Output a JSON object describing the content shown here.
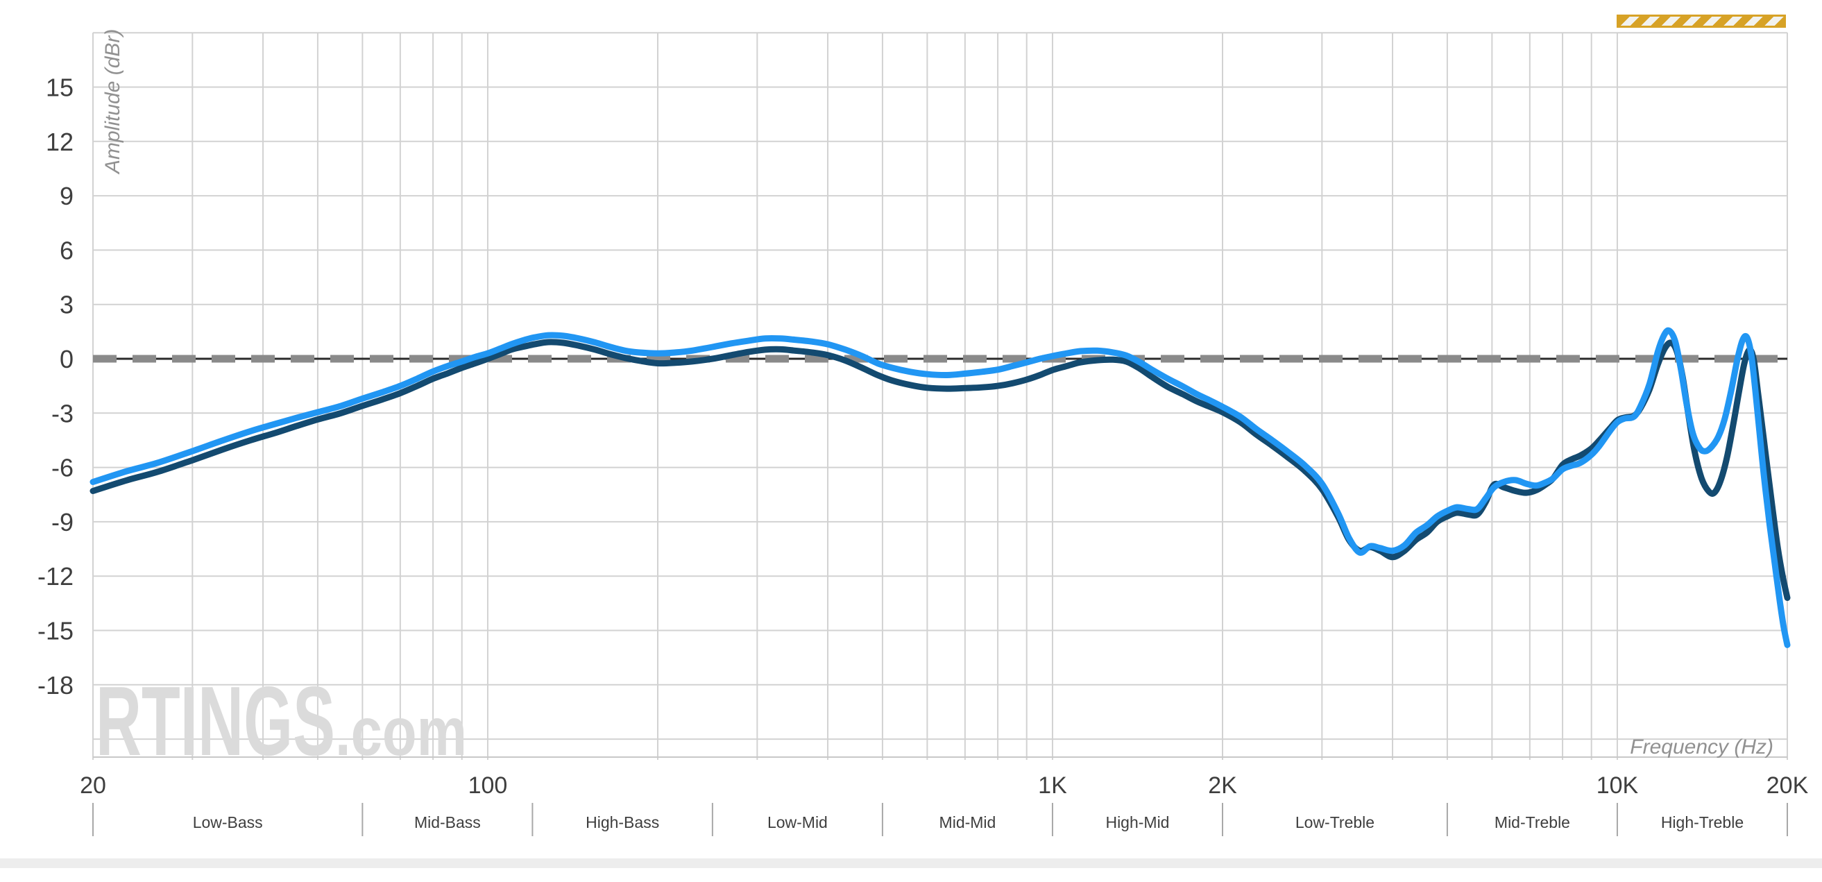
{
  "watermark": {
    "main": "RTINGS",
    "suffix": ".com"
  },
  "banner": {
    "gold_color": "#D7A226",
    "stripe_color": "#F2F2EF"
  },
  "colors": {
    "background": "#FFFFFF",
    "grid": "#D2D2D2",
    "spine": "#C8C8C8",
    "tick_text": "#3E3E3E",
    "axis_title_text": "#919191",
    "band_text": "#3E3E3E",
    "band_separator": "#A8A8A8",
    "target_dash": "#8A8A8A",
    "target_core": "#2B2B2B",
    "watermark_text": "#DBDBDB",
    "bottom_strip": "#EDEDED"
  },
  "chart_data": {
    "type": "line",
    "title": "",
    "xlabel": "Frequency (Hz)",
    "ylabel": "Amplitude (dBr)",
    "x_scale": "log",
    "xlim": [
      20,
      20000
    ],
    "ylim": [
      -21,
      18
    ],
    "grid": true,
    "legend_position": "none",
    "target_line_db": 0,
    "y_ticks": [
      {
        "v": 15,
        "label": "15"
      },
      {
        "v": 12,
        "label": "12"
      },
      {
        "v": 9,
        "label": "9"
      },
      {
        "v": 6,
        "label": "6"
      },
      {
        "v": 3,
        "label": "3"
      },
      {
        "v": 0,
        "label": "0"
      },
      {
        "v": -3,
        "label": "-3"
      },
      {
        "v": -6,
        "label": "-6"
      },
      {
        "v": -9,
        "label": "-9"
      },
      {
        "v": -12,
        "label": "-12"
      },
      {
        "v": -15,
        "label": "-15"
      },
      {
        "v": -18,
        "label": "-18"
      }
    ],
    "x_ticks": [
      {
        "f": 20,
        "label": "20"
      },
      {
        "f": 100,
        "label": "100"
      },
      {
        "f": 1000,
        "label": "1K"
      },
      {
        "f": 2000,
        "label": "2K"
      },
      {
        "f": 10000,
        "label": "10K"
      },
      {
        "f": 20000,
        "label": "20K"
      }
    ],
    "bands": [
      {
        "label": "Low-Bass",
        "from": 20,
        "to": 60
      },
      {
        "label": "Mid-Bass",
        "from": 60,
        "to": 120
      },
      {
        "label": "High-Bass",
        "from": 120,
        "to": 250
      },
      {
        "label": "Low-Mid",
        "from": 250,
        "to": 500
      },
      {
        "label": "Mid-Mid",
        "from": 500,
        "to": 1000
      },
      {
        "label": "High-Mid",
        "from": 1000,
        "to": 2000
      },
      {
        "label": "Low-Treble",
        "from": 2000,
        "to": 5000
      },
      {
        "label": "Mid-Treble",
        "from": 5000,
        "to": 10000
      },
      {
        "label": "High-Treble",
        "from": 10000,
        "to": 20000
      }
    ],
    "series": [
      {
        "name": "dark-blue-curve",
        "color": "#134A70",
        "points": [
          [
            20,
            -7.3
          ],
          [
            23,
            -6.7
          ],
          [
            26,
            -6.25
          ],
          [
            30,
            -5.6
          ],
          [
            34,
            -5.0
          ],
          [
            38,
            -4.5
          ],
          [
            42,
            -4.1
          ],
          [
            46,
            -3.7
          ],
          [
            50,
            -3.35
          ],
          [
            55,
            -3.0
          ],
          [
            60,
            -2.6
          ],
          [
            65,
            -2.25
          ],
          [
            70,
            -1.9
          ],
          [
            75,
            -1.5
          ],
          [
            80,
            -1.1
          ],
          [
            85,
            -0.8
          ],
          [
            90,
            -0.5
          ],
          [
            95,
            -0.25
          ],
          [
            100,
            0.0
          ],
          [
            105,
            0.25
          ],
          [
            110,
            0.5
          ],
          [
            115,
            0.65
          ],
          [
            121,
            0.8
          ],
          [
            128,
            0.92
          ],
          [
            136,
            0.88
          ],
          [
            145,
            0.72
          ],
          [
            155,
            0.5
          ],
          [
            165,
            0.25
          ],
          [
            175,
            0.05
          ],
          [
            185,
            -0.1
          ],
          [
            200,
            -0.25
          ],
          [
            215,
            -0.22
          ],
          [
            230,
            -0.15
          ],
          [
            250,
            0.0
          ],
          [
            270,
            0.2
          ],
          [
            290,
            0.38
          ],
          [
            310,
            0.5
          ],
          [
            330,
            0.52
          ],
          [
            350,
            0.45
          ],
          [
            375,
            0.35
          ],
          [
            400,
            0.2
          ],
          [
            430,
            -0.1
          ],
          [
            460,
            -0.5
          ],
          [
            490,
            -0.9
          ],
          [
            520,
            -1.2
          ],
          [
            560,
            -1.45
          ],
          [
            600,
            -1.6
          ],
          [
            650,
            -1.65
          ],
          [
            700,
            -1.62
          ],
          [
            750,
            -1.58
          ],
          [
            800,
            -1.5
          ],
          [
            850,
            -1.35
          ],
          [
            900,
            -1.15
          ],
          [
            950,
            -0.9
          ],
          [
            1000,
            -0.62
          ],
          [
            1060,
            -0.4
          ],
          [
            1120,
            -0.2
          ],
          [
            1200,
            -0.08
          ],
          [
            1280,
            -0.05
          ],
          [
            1350,
            -0.15
          ],
          [
            1420,
            -0.5
          ],
          [
            1500,
            -1.0
          ],
          [
            1600,
            -1.55
          ],
          [
            1700,
            -1.95
          ],
          [
            1800,
            -2.35
          ],
          [
            1900,
            -2.65
          ],
          [
            2000,
            -2.95
          ],
          [
            2150,
            -3.5
          ],
          [
            2300,
            -4.2
          ],
          [
            2450,
            -4.8
          ],
          [
            2600,
            -5.4
          ],
          [
            2800,
            -6.2
          ],
          [
            3000,
            -7.2
          ],
          [
            3200,
            -8.7
          ],
          [
            3350,
            -10.0
          ],
          [
            3500,
            -10.6
          ],
          [
            3650,
            -10.4
          ],
          [
            3800,
            -10.6
          ],
          [
            4000,
            -10.95
          ],
          [
            4200,
            -10.6
          ],
          [
            4400,
            -10.0
          ],
          [
            4600,
            -9.6
          ],
          [
            4800,
            -9.0
          ],
          [
            5000,
            -8.7
          ],
          [
            5200,
            -8.5
          ],
          [
            5450,
            -8.6
          ],
          [
            5650,
            -8.6
          ],
          [
            5850,
            -7.9
          ],
          [
            6050,
            -6.95
          ],
          [
            6300,
            -7.1
          ],
          [
            6600,
            -7.3
          ],
          [
            6900,
            -7.4
          ],
          [
            7200,
            -7.25
          ],
          [
            7500,
            -6.9
          ],
          [
            7700,
            -6.6
          ],
          [
            8000,
            -5.85
          ],
          [
            8300,
            -5.55
          ],
          [
            8600,
            -5.35
          ],
          [
            9000,
            -4.95
          ],
          [
            9300,
            -4.5
          ],
          [
            9700,
            -3.85
          ],
          [
            10000,
            -3.4
          ],
          [
            10300,
            -3.25
          ],
          [
            10700,
            -3.15
          ],
          [
            11000,
            -2.7
          ],
          [
            11400,
            -1.7
          ],
          [
            11800,
            -0.3
          ],
          [
            12150,
            0.6
          ],
          [
            12450,
            0.88
          ],
          [
            12750,
            0.4
          ],
          [
            13050,
            -1.0
          ],
          [
            13350,
            -3.0
          ],
          [
            13700,
            -5.1
          ],
          [
            14100,
            -6.6
          ],
          [
            14500,
            -7.3
          ],
          [
            14850,
            -7.4
          ],
          [
            15250,
            -6.7
          ],
          [
            15650,
            -5.4
          ],
          [
            16050,
            -3.6
          ],
          [
            16450,
            -1.7
          ],
          [
            16800,
            -0.2
          ],
          [
            17150,
            0.5
          ],
          [
            17450,
            -0.1
          ],
          [
            17750,
            -1.9
          ],
          [
            18050,
            -3.7
          ],
          [
            18450,
            -6.1
          ],
          [
            18850,
            -8.4
          ],
          [
            19250,
            -10.5
          ],
          [
            19650,
            -12.1
          ],
          [
            20000,
            -13.2
          ]
        ]
      },
      {
        "name": "light-blue-curve",
        "color": "#2196F3",
        "points": [
          [
            20,
            -6.8
          ],
          [
            23,
            -6.2
          ],
          [
            26,
            -5.75
          ],
          [
            30,
            -5.1
          ],
          [
            34,
            -4.5
          ],
          [
            38,
            -4.0
          ],
          [
            42,
            -3.6
          ],
          [
            46,
            -3.25
          ],
          [
            50,
            -2.95
          ],
          [
            55,
            -2.6
          ],
          [
            60,
            -2.2
          ],
          [
            65,
            -1.85
          ],
          [
            70,
            -1.5
          ],
          [
            75,
            -1.1
          ],
          [
            80,
            -0.7
          ],
          [
            85,
            -0.4
          ],
          [
            90,
            -0.15
          ],
          [
            95,
            0.1
          ],
          [
            100,
            0.3
          ],
          [
            105,
            0.55
          ],
          [
            110,
            0.8
          ],
          [
            115,
            1.0
          ],
          [
            121,
            1.18
          ],
          [
            128,
            1.3
          ],
          [
            136,
            1.27
          ],
          [
            145,
            1.12
          ],
          [
            155,
            0.9
          ],
          [
            165,
            0.65
          ],
          [
            175,
            0.45
          ],
          [
            185,
            0.35
          ],
          [
            200,
            0.3
          ],
          [
            215,
            0.35
          ],
          [
            230,
            0.45
          ],
          [
            250,
            0.65
          ],
          [
            270,
            0.85
          ],
          [
            290,
            1.0
          ],
          [
            310,
            1.12
          ],
          [
            330,
            1.12
          ],
          [
            350,
            1.05
          ],
          [
            375,
            0.95
          ],
          [
            400,
            0.8
          ],
          [
            430,
            0.5
          ],
          [
            460,
            0.15
          ],
          [
            490,
            -0.25
          ],
          [
            520,
            -0.5
          ],
          [
            560,
            -0.72
          ],
          [
            600,
            -0.85
          ],
          [
            650,
            -0.9
          ],
          [
            700,
            -0.82
          ],
          [
            750,
            -0.72
          ],
          [
            800,
            -0.6
          ],
          [
            850,
            -0.4
          ],
          [
            900,
            -0.2
          ],
          [
            950,
            0.0
          ],
          [
            1000,
            0.15
          ],
          [
            1060,
            0.3
          ],
          [
            1120,
            0.42
          ],
          [
            1200,
            0.45
          ],
          [
            1280,
            0.35
          ],
          [
            1350,
            0.18
          ],
          [
            1420,
            -0.15
          ],
          [
            1500,
            -0.6
          ],
          [
            1600,
            -1.1
          ],
          [
            1700,
            -1.52
          ],
          [
            1800,
            -1.95
          ],
          [
            1900,
            -2.3
          ],
          [
            2000,
            -2.65
          ],
          [
            2150,
            -3.2
          ],
          [
            2300,
            -3.9
          ],
          [
            2450,
            -4.5
          ],
          [
            2600,
            -5.1
          ],
          [
            2800,
            -5.9
          ],
          [
            3000,
            -6.9
          ],
          [
            3200,
            -8.5
          ],
          [
            3350,
            -9.9
          ],
          [
            3500,
            -10.7
          ],
          [
            3650,
            -10.35
          ],
          [
            3800,
            -10.45
          ],
          [
            4000,
            -10.6
          ],
          [
            4200,
            -10.3
          ],
          [
            4400,
            -9.6
          ],
          [
            4600,
            -9.2
          ],
          [
            4800,
            -8.7
          ],
          [
            5000,
            -8.4
          ],
          [
            5200,
            -8.2
          ],
          [
            5450,
            -8.3
          ],
          [
            5650,
            -8.3
          ],
          [
            5850,
            -7.7
          ],
          [
            6050,
            -7.1
          ],
          [
            6300,
            -6.8
          ],
          [
            6600,
            -6.7
          ],
          [
            6900,
            -6.9
          ],
          [
            7200,
            -7.0
          ],
          [
            7500,
            -6.8
          ],
          [
            7700,
            -6.6
          ],
          [
            8000,
            -6.1
          ],
          [
            8300,
            -5.9
          ],
          [
            8600,
            -5.75
          ],
          [
            9000,
            -5.3
          ],
          [
            9300,
            -4.8
          ],
          [
            9700,
            -4.0
          ],
          [
            10000,
            -3.5
          ],
          [
            10300,
            -3.3
          ],
          [
            10700,
            -3.2
          ],
          [
            11000,
            -2.6
          ],
          [
            11400,
            -1.4
          ],
          [
            11800,
            0.4
          ],
          [
            12100,
            1.3
          ],
          [
            12350,
            1.55
          ],
          [
            12650,
            1.0
          ],
          [
            12950,
            -0.5
          ],
          [
            13250,
            -2.4
          ],
          [
            13600,
            -4.1
          ],
          [
            14000,
            -4.95
          ],
          [
            14350,
            -5.1
          ],
          [
            14700,
            -4.85
          ],
          [
            15100,
            -4.3
          ],
          [
            15500,
            -3.3
          ],
          [
            15900,
            -1.8
          ],
          [
            16300,
            -0.1
          ],
          [
            16650,
            1.0
          ],
          [
            16950,
            1.2
          ],
          [
            17250,
            0.3
          ],
          [
            17550,
            -1.7
          ],
          [
            17850,
            -4.0
          ],
          [
            18200,
            -6.6
          ],
          [
            18600,
            -9.1
          ],
          [
            19000,
            -11.3
          ],
          [
            19400,
            -13.4
          ],
          [
            19700,
            -14.8
          ],
          [
            20000,
            -15.8
          ]
        ]
      }
    ]
  }
}
